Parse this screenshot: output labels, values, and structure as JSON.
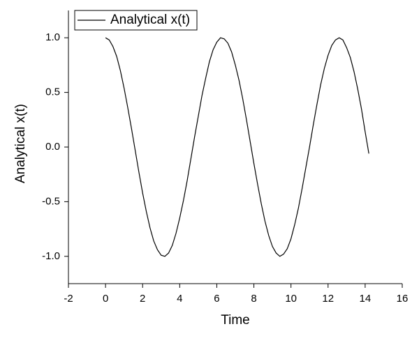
{
  "chart_data": {
    "type": "line",
    "xlabel": "Time",
    "ylabel": "Analytical x(t)",
    "x": [
      0,
      0.2,
      0.4,
      0.6,
      0.8,
      1.0,
      1.2,
      1.4,
      1.6,
      1.8,
      2.0,
      2.2,
      2.4,
      2.6,
      2.8,
      3.0,
      3.2,
      3.4,
      3.6,
      3.8,
      4.0,
      4.2,
      4.4,
      4.6,
      4.8,
      5.0,
      5.2,
      5.4,
      5.6,
      5.8,
      6.0,
      6.2,
      6.4,
      6.6,
      6.8,
      7.0,
      7.2,
      7.4,
      7.6,
      7.8,
      8.0,
      8.2,
      8.4,
      8.6,
      8.8,
      9.0,
      9.2,
      9.4,
      9.6,
      9.8,
      10.0,
      10.2,
      10.4,
      10.6,
      10.8,
      11.0,
      11.2,
      11.4,
      11.6,
      11.8,
      12.0,
      12.2,
      12.4,
      12.6,
      12.8,
      13.0,
      13.2,
      13.4,
      13.6,
      13.8,
      14.0,
      14.2
    ],
    "series": [
      {
        "name": "Analytical x(t)",
        "color": "#000000",
        "values": [
          1,
          0.98,
          0.92,
          0.83,
          0.7,
          0.54,
          0.36,
          0.17,
          -0.03,
          -0.23,
          -0.42,
          -0.59,
          -0.74,
          -0.86,
          -0.94,
          -0.99,
          -1.0,
          -0.97,
          -0.9,
          -0.79,
          -0.65,
          -0.49,
          -0.31,
          -0.11,
          0.09,
          0.28,
          0.47,
          0.63,
          0.78,
          0.89,
          0.96,
          1.0,
          0.99,
          0.95,
          0.87,
          0.75,
          0.61,
          0.44,
          0.25,
          0.05,
          -0.15,
          -0.34,
          -0.52,
          -0.68,
          -0.81,
          -0.91,
          -0.97,
          -1.0,
          -0.98,
          -0.93,
          -0.84,
          -0.71,
          -0.56,
          -0.38,
          -0.19,
          0.0,
          0.2,
          0.39,
          0.57,
          0.72,
          0.84,
          0.93,
          0.98,
          1.0,
          0.98,
          0.91,
          0.82,
          0.69,
          0.53,
          0.35,
          0.14,
          -0.06
        ]
      }
    ],
    "xlim": [
      -2,
      16
    ],
    "xticks": [
      -2,
      0,
      2,
      4,
      6,
      8,
      10,
      12,
      14,
      16
    ],
    "ylim": [
      -1.25,
      1.25
    ],
    "yticks": [
      {
        "value": -1,
        "label": "-1.0"
      },
      {
        "value": -0.5,
        "label": "-0.5"
      },
      {
        "value": 0,
        "label": "0.0"
      },
      {
        "value": 0.5,
        "label": "0.5"
      },
      {
        "value": 1,
        "label": "1.0"
      }
    ],
    "grid": false,
    "legend": "upper-left"
  }
}
